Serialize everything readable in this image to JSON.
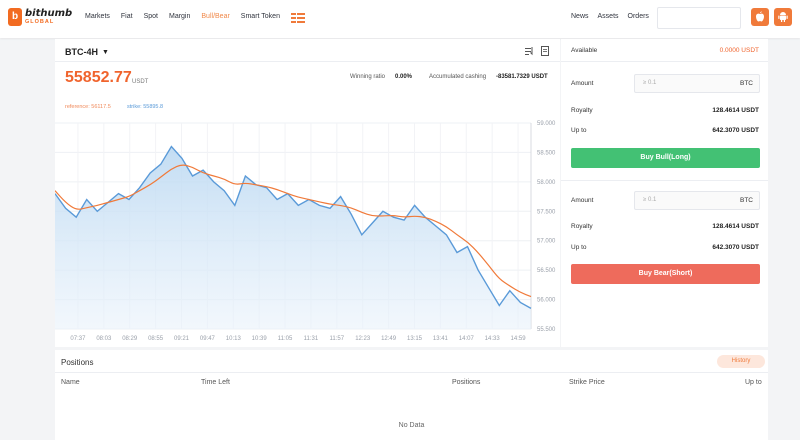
{
  "brand": {
    "name": "bithumb",
    "sub": "GLOBAL"
  },
  "nav": {
    "items": [
      {
        "label": "Markets",
        "active": false
      },
      {
        "label": "Fiat",
        "active": false
      },
      {
        "label": "Spot",
        "active": false
      },
      {
        "label": "Margin",
        "active": false
      },
      {
        "label": "Bull/Bear",
        "active": true
      },
      {
        "label": "Smart Token",
        "active": false
      }
    ],
    "right": [
      "News",
      "Assets",
      "Orders"
    ]
  },
  "chart_header": {
    "pair": "BTC-4H",
    "price": "55852.77",
    "price_unit": "USDT",
    "winning_ratio_label": "Winning ratio",
    "winning_ratio_value": "0.00%",
    "acc_cashing_label": "Accumulated cashing",
    "acc_cashing_value": "-83581.7329 USDT",
    "reference": "reference: 56117.5",
    "strike": "strike: 55895.8"
  },
  "chart_data": {
    "type": "area",
    "x_labels": [
      "07:37",
      "08:03",
      "08:29",
      "08:55",
      "09:21",
      "09:47",
      "10:13",
      "10:39",
      "11:05",
      "11:31",
      "11:57",
      "12:23",
      "12:49",
      "13:15",
      "13:41",
      "14:07",
      "14:33",
      "14:59"
    ],
    "y_ticks": [
      "59.000",
      "58.500",
      "58.000",
      "57.500",
      "57.000",
      "56.500",
      "56.000",
      "55.500"
    ],
    "ylim": [
      55500,
      59000
    ],
    "series": [
      {
        "color": "#5a9ad8",
        "values": [
          57800,
          57550,
          57400,
          57700,
          57500,
          57650,
          57800,
          57700,
          57900,
          58150,
          58300,
          58600,
          58400,
          58100,
          58200,
          58000,
          57850,
          57600,
          58100,
          57950,
          57900,
          57700,
          57800,
          57600,
          57700,
          57600,
          57550,
          57750,
          57450,
          57100,
          57300,
          57500,
          57400,
          57350,
          57600,
          57400,
          57250,
          57100,
          56800,
          56900,
          56500,
          56200,
          55900,
          56150,
          55950,
          55850
        ]
      },
      {
        "color": "#f07a3a",
        "values": [
          57850,
          57650,
          57520,
          57560,
          57600,
          57650,
          57700,
          57750,
          57850,
          57950,
          58080,
          58220,
          58300,
          58250,
          58150,
          58100,
          58050,
          57950,
          57980,
          57950,
          57920,
          57870,
          57800,
          57740,
          57700,
          57660,
          57620,
          57600,
          57560,
          57480,
          57420,
          57420,
          57430,
          57400,
          57420,
          57400,
          57330,
          57240,
          57100,
          56980,
          56800,
          56580,
          56350,
          56230,
          56120,
          56050
        ]
      }
    ],
    "grid": true
  },
  "order": {
    "available_label": "Available",
    "available_value": "0.0000 USDT",
    "bull": {
      "amount_label": "Amount",
      "amount_placeholder": "≥ 0.1",
      "amount_unit": "BTC",
      "royalty_label": "Royalty",
      "royalty_value": "128.4614 USDT",
      "upto_label": "Up to",
      "upto_value": "642.3070 USDT",
      "button": "Buy Bull(Long)"
    },
    "bear": {
      "amount_label": "Amount",
      "amount_placeholder": "≥ 0.1",
      "amount_unit": "BTC",
      "royalty_label": "Royalty",
      "royalty_value": "128.4614 USDT",
      "upto_label": "Up to",
      "upto_value": "642.3070 USDT",
      "button": "Buy Bear(Short)"
    }
  },
  "positions": {
    "title": "Positions",
    "history": "History",
    "columns": [
      "Name",
      "Time Left",
      "Positions",
      "Strike Price",
      "Up to"
    ],
    "empty": "No Data"
  },
  "colors": {
    "accent": "#f07a3a",
    "bull": "#43c174",
    "bear": "#ee6b5c",
    "line": "#5a9ad8"
  }
}
